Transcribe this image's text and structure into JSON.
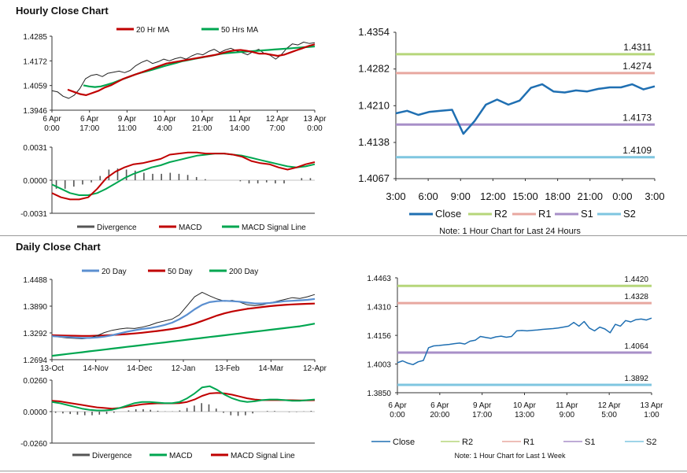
{
  "sections": {
    "hourly_title": "Hourly Close Chart",
    "daily_title": "Daily Close Chart"
  },
  "colors": {
    "close": "#1f6fb2",
    "ma_short": "#c00000",
    "ma_long": "#00a650",
    "r2": "#b6d67a",
    "r1": "#e8a8a0",
    "s1": "#a88fc8",
    "s2": "#7fc6e0",
    "divergence": "#555555",
    "grid": "#d0d0d0"
  },
  "chart_data": [
    {
      "id": "hourly-price",
      "type": "line",
      "legend": [
        "20 Hr MA",
        "50 Hrs MA"
      ],
      "series_colors": [
        "#c00000",
        "#00a650"
      ],
      "y_ticks": [
        "1.4285",
        "1.4172",
        "1.4059",
        "1.3946"
      ],
      "ylim": [
        1.3946,
        1.4285
      ],
      "x_labels": [
        [
          "6 Apr",
          "0:00"
        ],
        [
          "6 Apr",
          "17:00"
        ],
        [
          "9 Apr",
          "11:00"
        ],
        [
          "10 Apr",
          "4:00"
        ],
        [
          "10 Apr",
          "21:00"
        ],
        [
          "11 Apr",
          "14:00"
        ],
        [
          "12 Apr",
          "7:00"
        ],
        [
          "13 Apr",
          "0:00"
        ]
      ],
      "close": [
        1.4035,
        1.403,
        1.401,
        1.4,
        1.4015,
        1.4045,
        1.409,
        1.4105,
        1.411,
        1.41,
        1.4115,
        1.412,
        1.4125,
        1.4118,
        1.4128,
        1.415,
        1.4165,
        1.4175,
        1.416,
        1.4168,
        1.418,
        1.4172,
        1.4182,
        1.4188,
        1.418,
        1.4195,
        1.4205,
        1.42,
        1.4215,
        1.4225,
        1.421,
        1.4222,
        1.423,
        1.4218,
        1.421,
        1.42,
        1.4215,
        1.4225,
        1.4205,
        1.4198,
        1.418,
        1.42,
        1.423,
        1.425,
        1.4245,
        1.4258,
        1.4252,
        1.4255
      ],
      "ma20": [
        1.404,
        1.403,
        1.402,
        1.4015,
        1.4025,
        1.4035,
        1.405,
        1.406,
        1.4075,
        1.409,
        1.41,
        1.411,
        1.412,
        1.413,
        1.414,
        1.415,
        1.416,
        1.4165,
        1.417,
        1.4175,
        1.418,
        1.4185,
        1.419,
        1.4195,
        1.42,
        1.4208,
        1.4215,
        1.422,
        1.4222,
        1.4218,
        1.4212,
        1.4205,
        1.4205,
        1.42,
        1.4195,
        1.42,
        1.421,
        1.422,
        1.423,
        1.424,
        1.4248
      ],
      "ma50": [
        1.406,
        1.4055,
        1.4052,
        1.4055,
        1.4062,
        1.407,
        1.408,
        1.409,
        1.41,
        1.411,
        1.4118,
        1.4125,
        1.4132,
        1.414,
        1.4148,
        1.4155,
        1.4162,
        1.417,
        1.4175,
        1.418,
        1.4185,
        1.419,
        1.4195,
        1.42,
        1.4205,
        1.4208,
        1.421,
        1.4212,
        1.4214,
        1.4216,
        1.4218,
        1.422,
        1.4222,
        1.4224,
        1.4226,
        1.4228,
        1.423,
        1.4232,
        1.4234,
        1.4236,
        1.4238
      ]
    },
    {
      "id": "hourly-macd",
      "type": "line",
      "legend": [
        "Divergence",
        "MACD",
        "MACD Signal Line"
      ],
      "series_colors": [
        "#555555",
        "#c00000",
        "#00a650"
      ],
      "y_ticks": [
        "0.0031",
        "0.0000",
        "-0.0031"
      ],
      "ylim": [
        -0.0031,
        0.0031
      ],
      "macd": [
        -0.0012,
        -0.0016,
        -0.0018,
        -0.0018,
        -0.0016,
        -0.0008,
        0.0002,
        0.0008,
        0.0012,
        0.0015,
        0.0016,
        0.0018,
        0.002,
        0.0024,
        0.0025,
        0.0026,
        0.0026,
        0.0025,
        0.0025,
        0.0025,
        0.0024,
        0.0022,
        0.0018,
        0.0016,
        0.0015,
        0.0012,
        0.001,
        0.0012,
        0.0015,
        0.0017
      ],
      "signal": [
        -0.0004,
        -0.0008,
        -0.0012,
        -0.0014,
        -0.0014,
        -0.0012,
        -0.0008,
        -0.0003,
        0.0002,
        0.0006,
        0.0009,
        0.0012,
        0.0014,
        0.0017,
        0.0019,
        0.0021,
        0.0023,
        0.0024,
        0.0025,
        0.0025,
        0.0024,
        0.0023,
        0.0021,
        0.0019,
        0.0017,
        0.0015,
        0.0013,
        0.0012,
        0.0013,
        0.0015
      ],
      "divergence": [
        -0.0008,
        -0.0008,
        -0.0006,
        -0.0004,
        -0.0002,
        0.0004,
        0.001,
        0.0011,
        0.001,
        0.0009,
        0.0007,
        0.0006,
        0.0006,
        0.0007,
        0.0006,
        0.0005,
        0.0003,
        0.0001,
        0.0,
        0.0,
        0.0,
        -0.0001,
        -0.0003,
        -0.0003,
        -0.0002,
        -0.0003,
        -0.0003,
        0.0,
        0.0002,
        0.0002
      ]
    },
    {
      "id": "hourly-24h",
      "type": "line",
      "y_ticks": [
        "1.4354",
        "1.4282",
        "1.4210",
        "1.4138",
        "1.4067"
      ],
      "ylim": [
        1.4067,
        1.4354
      ],
      "x_labels": [
        "3:00",
        "6:00",
        "9:00",
        "12:00",
        "15:00",
        "18:00",
        "21:00",
        "0:00",
        "3:00"
      ],
      "close": [
        1.4195,
        1.42,
        1.4192,
        1.4198,
        1.42,
        1.4202,
        1.4155,
        1.418,
        1.4212,
        1.4222,
        1.4212,
        1.422,
        1.4245,
        1.4252,
        1.4238,
        1.4236,
        1.424,
        1.4238,
        1.4243,
        1.4246,
        1.4246,
        1.4252,
        1.4242,
        1.4248
      ],
      "levels": [
        {
          "name": "R2",
          "value": 1.4311,
          "label": "1.4311"
        },
        {
          "name": "R1",
          "value": 1.4274,
          "label": "1.4274"
        },
        {
          "name": "S1",
          "value": 1.4173,
          "label": "1.4173"
        },
        {
          "name": "S2",
          "value": 1.4109,
          "label": "1.4109"
        }
      ],
      "legend": [
        "Close",
        "R2",
        "R1",
        "S1",
        "S2"
      ],
      "note": "Note: 1 Hour Chart for Last 24 Hours"
    },
    {
      "id": "daily-price",
      "type": "line",
      "legend": [
        "20 Day",
        "50 Day",
        "200 Day"
      ],
      "series_colors": [
        "#5b8fd0",
        "#c00000",
        "#00a650"
      ],
      "y_ticks": [
        "1.4488",
        "1.3890",
        "1.3292",
        "1.2694"
      ],
      "ylim": [
        1.2694,
        1.4488
      ],
      "x_labels": [
        "13-Oct",
        "14-Nov",
        "14-Dec",
        "12-Jan",
        "13-Feb",
        "14-Mar",
        "12-Apr"
      ],
      "close": [
        1.322,
        1.32,
        1.318,
        1.317,
        1.316,
        1.3175,
        1.323,
        1.33,
        1.335,
        1.338,
        1.34,
        1.339,
        1.342,
        1.346,
        1.352,
        1.356,
        1.36,
        1.37,
        1.39,
        1.41,
        1.42,
        1.412,
        1.405,
        1.4,
        1.402,
        1.398,
        1.392,
        1.39,
        1.392,
        1.396,
        1.4,
        1.404,
        1.408,
        1.406,
        1.41,
        1.415
      ],
      "ma20": [
        1.322,
        1.321,
        1.32,
        1.319,
        1.318,
        1.318,
        1.319,
        1.321,
        1.324,
        1.328,
        1.332,
        1.335,
        1.338,
        1.34,
        1.343,
        1.347,
        1.352,
        1.36,
        1.37,
        1.382,
        1.392,
        1.398,
        1.4,
        1.401,
        1.4,
        1.399,
        1.397,
        1.395,
        1.395,
        1.396,
        1.398,
        1.4,
        1.401,
        1.402,
        1.403,
        1.405
      ],
      "ma50": [
        1.324,
        1.3235,
        1.323,
        1.3228,
        1.3226,
        1.3226,
        1.323,
        1.3236,
        1.3244,
        1.3254,
        1.3266,
        1.328,
        1.3296,
        1.3314,
        1.3334,
        1.3356,
        1.338,
        1.341,
        1.345,
        1.35,
        1.356,
        1.362,
        1.368,
        1.373,
        1.377,
        1.38,
        1.383,
        1.385,
        1.387,
        1.389,
        1.3905,
        1.3918,
        1.3928,
        1.3936,
        1.3942,
        1.3948
      ],
      "ma200": [
        1.278,
        1.28,
        1.282,
        1.284,
        1.286,
        1.288,
        1.29,
        1.292,
        1.294,
        1.296,
        1.298,
        1.3,
        1.302,
        1.304,
        1.306,
        1.308,
        1.31,
        1.312,
        1.314,
        1.316,
        1.318,
        1.32,
        1.322,
        1.324,
        1.326,
        1.328,
        1.33,
        1.332,
        1.334,
        1.336,
        1.338,
        1.34,
        1.342,
        1.344,
        1.347,
        1.35
      ]
    },
    {
      "id": "daily-macd",
      "type": "line",
      "legend": [
        "Divergence",
        "MACD",
        "MACD Signal Line"
      ],
      "series_colors": [
        "#555555",
        "#00a650",
        "#c00000"
      ],
      "y_ticks": [
        "0.0260",
        "0.0000",
        "-0.0260"
      ],
      "ylim": [
        -0.026,
        0.026
      ],
      "macd": [
        0.008,
        0.007,
        0.0055,
        0.004,
        0.0025,
        0.0015,
        0.001,
        0.001,
        0.0015,
        0.003,
        0.005,
        0.007,
        0.008,
        0.008,
        0.0075,
        0.007,
        0.007,
        0.008,
        0.011,
        0.015,
        0.02,
        0.021,
        0.018,
        0.014,
        0.011,
        0.009,
        0.008,
        0.0085,
        0.0095,
        0.01,
        0.01,
        0.0095,
        0.009,
        0.009,
        0.0095,
        0.01
      ],
      "signal": [
        0.009,
        0.0085,
        0.0075,
        0.0065,
        0.0055,
        0.0045,
        0.0035,
        0.003,
        0.0025,
        0.003,
        0.004,
        0.005,
        0.006,
        0.0065,
        0.0068,
        0.0068,
        0.0068,
        0.007,
        0.008,
        0.01,
        0.013,
        0.015,
        0.0155,
        0.015,
        0.014,
        0.0125,
        0.011,
        0.01,
        0.0095,
        0.0095,
        0.0095,
        0.0095,
        0.0094,
        0.0093,
        0.0093,
        0.0094
      ],
      "divergence": [
        -0.001,
        -0.0015,
        -0.002,
        -0.0025,
        -0.003,
        -0.003,
        -0.0025,
        -0.002,
        -0.001,
        0.0,
        0.001,
        0.002,
        0.002,
        0.0015,
        0.0007,
        0.0002,
        0.0002,
        0.001,
        0.003,
        0.005,
        0.007,
        0.006,
        0.0025,
        -0.001,
        -0.003,
        -0.0035,
        -0.003,
        -0.0015,
        0.0,
        0.0005,
        0.0005,
        0.0,
        -0.0004,
        -0.0003,
        0.0002,
        0.0006
      ]
    },
    {
      "id": "weekly",
      "type": "line",
      "y_ticks": [
        "1.4463",
        "1.4310",
        "1.4156",
        "1.4003",
        "1.3850"
      ],
      "ylim": [
        1.385,
        1.4463
      ],
      "x_labels": [
        [
          "6 Apr",
          "0:00"
        ],
        [
          "6 Apr",
          "20:00"
        ],
        [
          "9 Apr",
          "17:00"
        ],
        [
          "10 Apr",
          "13:00"
        ],
        [
          "11 Apr",
          "9:00"
        ],
        [
          "12 Apr",
          "5:00"
        ],
        [
          "13 Apr",
          "1:00"
        ]
      ],
      "close": [
        1.401,
        1.402,
        1.4008,
        1.4,
        1.4015,
        1.4022,
        1.409,
        1.41,
        1.4102,
        1.4105,
        1.4108,
        1.4112,
        1.4115,
        1.411,
        1.4125,
        1.413,
        1.415,
        1.4145,
        1.414,
        1.4148,
        1.4152,
        1.4146,
        1.415,
        1.418,
        1.4182,
        1.418,
        1.4183,
        1.4185,
        1.4188,
        1.419,
        1.4192,
        1.4195,
        1.42,
        1.4205,
        1.4225,
        1.4205,
        1.423,
        1.4195,
        1.418,
        1.42,
        1.419,
        1.417,
        1.4215,
        1.4205,
        1.4235,
        1.4228,
        1.424,
        1.4243,
        1.4238,
        1.4248
      ],
      "levels": [
        {
          "name": "R2",
          "value": 1.442,
          "label": "1.4420"
        },
        {
          "name": "R1",
          "value": 1.4328,
          "label": "1.4328"
        },
        {
          "name": "S1",
          "value": 1.4064,
          "label": "1.4064"
        },
        {
          "name": "S2",
          "value": 1.3892,
          "label": "1.3892"
        }
      ],
      "legend": [
        "Close",
        "R2",
        "R1",
        "S1",
        "S2"
      ],
      "note": "Note: 1 Hour Chart for Last 1 Week"
    }
  ]
}
